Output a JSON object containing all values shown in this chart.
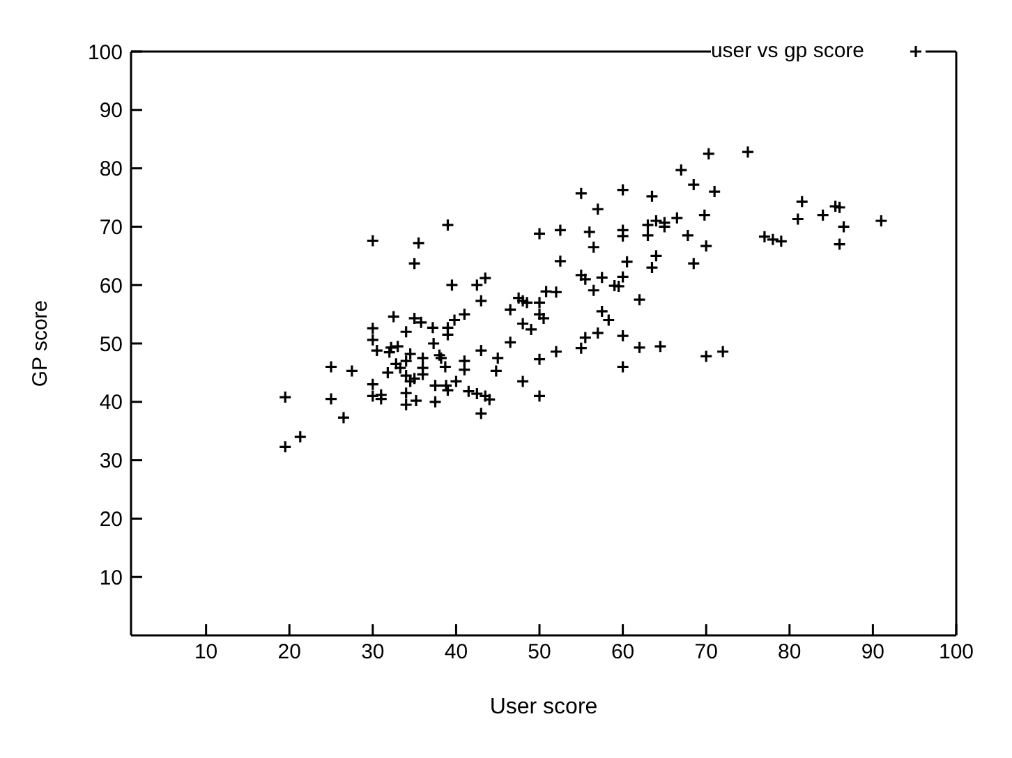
{
  "chart_data": {
    "type": "scatter",
    "xlabel": "User score",
    "ylabel": "GP score",
    "xlim": [
      1,
      100
    ],
    "xticks": [
      10,
      20,
      30,
      40,
      50,
      60,
      70,
      80,
      90,
      100
    ],
    "ylim": [
      0,
      100
    ],
    "yticks": [
      10,
      20,
      30,
      40,
      50,
      60,
      70,
      80,
      90,
      100
    ],
    "grid": false,
    "legend": "top right",
    "marker": "cross",
    "series": [
      {
        "name": "user vs gp score",
        "color": "#000000",
        "x": [
          19.5,
          19.5,
          21.3,
          25,
          25,
          26.5,
          27.5,
          30,
          30,
          30,
          30,
          30,
          30.5,
          31,
          31,
          31.8,
          32,
          32.2,
          32.5,
          32.8,
          33,
          33.3,
          34,
          34,
          34,
          34,
          34,
          34.5,
          34.5,
          35,
          35,
          35,
          35.2,
          35.5,
          35.8,
          36,
          36,
          36,
          37.2,
          37.3,
          37.5,
          37.5,
          38,
          38.2,
          38.7,
          38.8,
          39,
          39,
          39,
          39,
          39.5,
          39.8,
          40,
          41,
          41,
          41,
          41.5,
          42.5,
          42.5,
          43,
          43,
          43,
          43.5,
          43.5,
          44,
          44.8,
          45,
          46.5,
          46.5,
          47.5,
          48,
          48,
          48,
          48.5,
          49,
          50,
          50,
          50,
          50,
          50,
          50.5,
          50.8,
          52,
          52,
          52.5,
          52.5,
          55,
          55,
          55,
          55.5,
          55.5,
          56,
          56.5,
          56.5,
          57,
          57,
          57.5,
          57.5,
          58.3,
          59,
          59.5,
          60,
          60,
          60,
          60,
          60,
          60,
          60.5,
          62,
          62,
          63,
          63,
          63.5,
          63.5,
          64,
          64,
          64.5,
          65,
          65,
          66.5,
          67,
          67.8,
          68.5,
          68.5,
          69.8,
          70,
          70,
          70.3,
          71,
          72,
          75,
          77,
          78,
          79,
          81,
          81.5,
          84,
          85.5,
          86,
          86,
          86.5,
          91
        ],
        "values": [
          40.8,
          32.3,
          34,
          46,
          40.5,
          37.3,
          45.3,
          67.6,
          52.6,
          50.6,
          43,
          41,
          48.8,
          41.2,
          40.5,
          45,
          48.5,
          49.3,
          54.6,
          46.5,
          49.5,
          45.8,
          52,
          47,
          44.5,
          41.5,
          39.5,
          48.2,
          43.5,
          63.7,
          54.3,
          44,
          40.2,
          67.2,
          53.6,
          47.5,
          45.8,
          44.7,
          52.7,
          50,
          42.8,
          40,
          48,
          47.5,
          46,
          42.8,
          52.7,
          51.5,
          70.3,
          42,
          60,
          54,
          43.5,
          47,
          45.5,
          55,
          41.8,
          60,
          41.4,
          48.8,
          57.3,
          38,
          61.2,
          41,
          40.4,
          45.3,
          47.5,
          50.2,
          55.8,
          57.8,
          57.3,
          53.4,
          43.5,
          57,
          52.4,
          68.8,
          57,
          55,
          47.3,
          41,
          54.3,
          58.9,
          58.8,
          48.6,
          64.1,
          69.4,
          75.7,
          61.7,
          49.2,
          61,
          51,
          69.1,
          66.5,
          59.1,
          73,
          51.8,
          61.3,
          55.5,
          54,
          59.9,
          59.8,
          76.3,
          69.4,
          68.4,
          61.4,
          51.3,
          46,
          64,
          57.5,
          49.3,
          70.3,
          68.5,
          75.2,
          63,
          71,
          65,
          49.5,
          70.7,
          70,
          71.5,
          79.7,
          68.5,
          77.2,
          63.7,
          72,
          66.7,
          47.8,
          82.5,
          76,
          48.6,
          82.8,
          68.3,
          67.8,
          67.5,
          71.3,
          74.3,
          72,
          73.5,
          73.3,
          67,
          70,
          71
        ]
      }
    ]
  }
}
